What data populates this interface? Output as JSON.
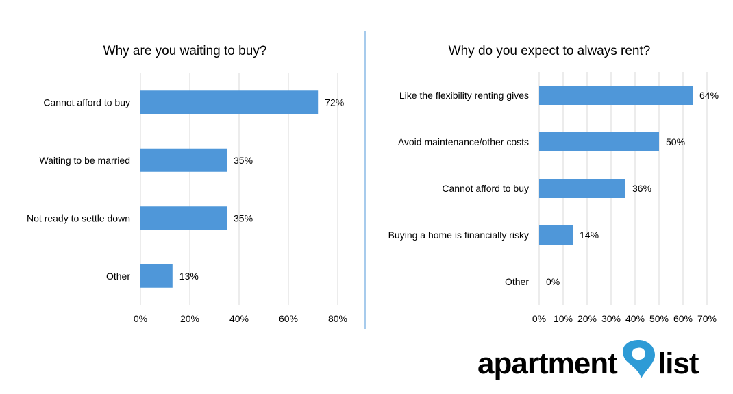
{
  "chart_data": [
    {
      "type": "bar",
      "orientation": "horizontal",
      "title": "Why are you waiting to buy?",
      "categories": [
        "Cannot afford to buy",
        "Waiting to be married",
        "Not ready to settle down",
        "Other"
      ],
      "values": [
        72,
        35,
        35,
        13
      ],
      "value_labels": [
        "72%",
        "35%",
        "35%",
        "13%"
      ],
      "xlim": [
        0,
        80
      ],
      "xticks": [
        0,
        20,
        40,
        60,
        80
      ],
      "xtick_labels": [
        "0%",
        "20%",
        "40%",
        "60%",
        "80%"
      ],
      "grid": true,
      "legend": "none",
      "bar_color": "#4f97d9"
    },
    {
      "type": "bar",
      "orientation": "horizontal",
      "title": "Why do you expect to always rent?",
      "categories": [
        "Like the flexibility renting gives",
        "Avoid maintenance/other costs",
        "Cannot afford to buy",
        "Buying a home is financially risky",
        "Other"
      ],
      "values": [
        64,
        50,
        36,
        14,
        0
      ],
      "value_labels": [
        "64%",
        "50%",
        "36%",
        "14%",
        "0%"
      ],
      "xlim": [
        0,
        70
      ],
      "xticks": [
        0,
        10,
        20,
        30,
        40,
        50,
        60,
        70
      ],
      "xtick_labels": [
        "0%",
        "10%",
        "20%",
        "30%",
        "40%",
        "50%",
        "60%",
        "70%"
      ],
      "grid": true,
      "legend": "none",
      "bar_color": "#4f97d9"
    }
  ],
  "logo": {
    "text_left": "apartment",
    "text_right": "list",
    "pin_color": "#2e9bd6",
    "pin_dark_color": "#1a5f8c"
  },
  "colors": {
    "divider": "#4f97d9",
    "grid": "#d9d9d9"
  }
}
